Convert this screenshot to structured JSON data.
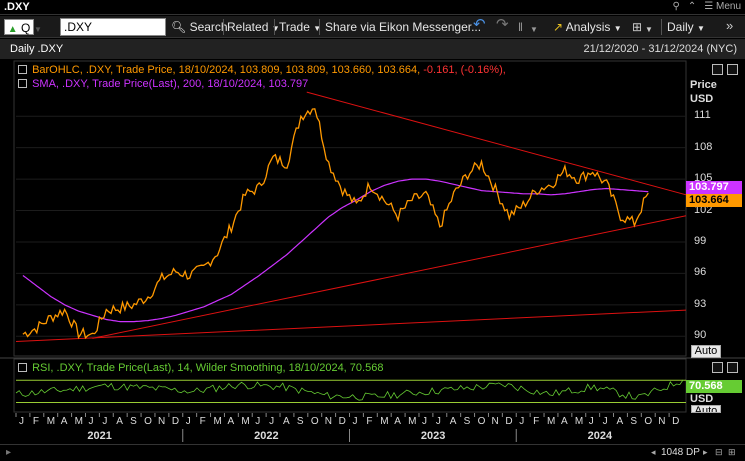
{
  "window": {
    "title": ".DXY",
    "menu_label": "Menu"
  },
  "toolbar": {
    "mode_label": "Q",
    "ric_value": ".DXY",
    "search_label": "Search",
    "related_label": "Related",
    "trade_label": "Trade",
    "share_label": "Share via Eikon Messenger...",
    "analysis_label": "Analysis",
    "interval_label": "Daily"
  },
  "header": {
    "chart_name": "Daily .DXY",
    "date_range": "21/12/2020 - 31/12/2024 (NYC)"
  },
  "legend": {
    "ohlc_text": "BarOHLC, .DXY, Trade Price,  18/10/2024, 103.809, 103.809, 103.660, 103.664,",
    "ohlc_change": "-0.161, (-0.16%),",
    "sma_text": "SMA, .DXY, Trade Price(Last),  200,  18/10/2024, 103.797",
    "rsi_text": "RSI, .DXY, Trade Price(Last),  14, Wilder Smoothing,  18/10/2024, 70.568"
  },
  "price_axis": {
    "title": "Price",
    "unit": "USD",
    "ticks": [
      "111",
      "108",
      "105",
      "102",
      "99",
      "96",
      "93",
      "90"
    ],
    "sma_tag": "103.797",
    "price_tag": "103.664",
    "auto_label": "Auto"
  },
  "rsi_axis": {
    "value_tag": "70.568",
    "unit": "USD",
    "auto_label": "Auto"
  },
  "x_axis": {
    "months": [
      "J",
      "F",
      "M",
      "A",
      "M",
      "J",
      "J",
      "A",
      "S",
      "O",
      "N",
      "D",
      "J",
      "F",
      "M",
      "A",
      "M",
      "J",
      "J",
      "A",
      "S",
      "O",
      "N",
      "D",
      "J",
      "F",
      "M",
      "A",
      "M",
      "J",
      "J",
      "A",
      "S",
      "O",
      "N",
      "D",
      "J",
      "F",
      "M",
      "A",
      "M",
      "J",
      "J",
      "A",
      "S",
      "O",
      "N",
      "D"
    ],
    "years": [
      "2021",
      "2022",
      "2023",
      "2024"
    ]
  },
  "status": {
    "bars_label": "1048 DP"
  },
  "colors": {
    "price_line": "#ff9900",
    "sma_line": "#cc33ff",
    "trendline": "#dd1111",
    "rsi_line": "#66cc33",
    "rsi_band": "#99cc33"
  },
  "chart_data": [
    {
      "type": "line",
      "title": "Daily .DXY",
      "ylabel": "Price USD",
      "ylim": [
        88.5,
        113.5
      ],
      "x": [
        "2021-01",
        "2021-02",
        "2021-03",
        "2021-04",
        "2021-05",
        "2021-06",
        "2021-07",
        "2021-08",
        "2021-09",
        "2021-10",
        "2021-11",
        "2021-12",
        "2022-01",
        "2022-02",
        "2022-03",
        "2022-04",
        "2022-05",
        "2022-06",
        "2022-07",
        "2022-08",
        "2022-09",
        "2022-10",
        "2022-11",
        "2022-12",
        "2023-01",
        "2023-02",
        "2023-03",
        "2023-04",
        "2023-05",
        "2023-06",
        "2023-07",
        "2023-08",
        "2023-09",
        "2023-10",
        "2023-11",
        "2023-12",
        "2024-01",
        "2024-02",
        "2024-03",
        "2024-04",
        "2024-05",
        "2024-06",
        "2024-07",
        "2024-08",
        "2024-09",
        "2024-10"
      ],
      "series": [
        {
          "name": "BarOHLC, .DXY, Trade Price",
          "values": [
            90.2,
            90.8,
            91.8,
            92.5,
            90.3,
            90.1,
            92.5,
            92.7,
            93.0,
            93.8,
            95.5,
            96.2,
            95.8,
            96.5,
            98.0,
            100.5,
            103.5,
            104.2,
            107.0,
            106.5,
            111.0,
            112.0,
            106.5,
            104.0,
            102.5,
            104.5,
            103.0,
            101.5,
            103.0,
            103.5,
            100.5,
            103.5,
            105.5,
            106.5,
            104.0,
            101.5,
            102.5,
            104.0,
            104.5,
            105.8,
            105.0,
            105.8,
            104.5,
            101.5,
            100.8,
            103.664
          ]
        },
        {
          "name": "SMA, .DXY, Trade Price(Last), 200",
          "values": [
            95.8,
            94.8,
            93.8,
            93.0,
            92.4,
            92.0,
            91.6,
            91.4,
            91.4,
            91.5,
            91.7,
            92.0,
            92.4,
            92.8,
            93.4,
            94.0,
            94.9,
            95.8,
            96.8,
            97.8,
            99.0,
            100.2,
            101.4,
            102.3,
            103.0,
            103.8,
            104.4,
            104.8,
            105.0,
            105.0,
            104.8,
            104.5,
            104.2,
            103.9,
            103.8,
            103.7,
            103.6,
            103.6,
            103.5,
            103.6,
            103.8,
            104.0,
            104.1,
            104.0,
            103.9,
            103.797
          ]
        }
      ]
    },
    {
      "type": "line",
      "title": "RSI, .DXY, Trade Price(Last), 14, Wilder Smoothing",
      "ylim": [
        20,
        85
      ],
      "x": [
        "2021-01",
        "2021-04",
        "2021-07",
        "2021-10",
        "2022-01",
        "2022-04",
        "2022-07",
        "2022-10",
        "2023-01",
        "2023-04",
        "2023-07",
        "2023-10",
        "2024-01",
        "2024-04",
        "2024-07",
        "2024-10"
      ],
      "series": [
        {
          "name": "RSI",
          "values": [
            45,
            52,
            60,
            56,
            50,
            62,
            58,
            42,
            40,
            48,
            55,
            62,
            45,
            58,
            38,
            70.568
          ]
        }
      ]
    }
  ]
}
